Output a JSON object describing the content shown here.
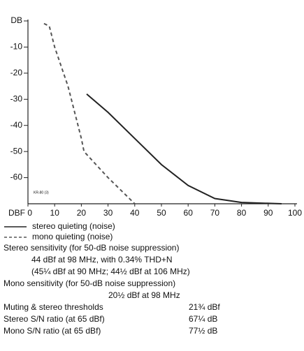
{
  "chart_data": {
    "type": "line",
    "annotation": "KR-80 (3)",
    "series": [
      {
        "name": "stereo quieting (noise)",
        "color": "#222222",
        "dash": false,
        "x": [
          22,
          30,
          40,
          50,
          60,
          70,
          80,
          95
        ],
        "values": [
          -28,
          -35,
          -45,
          -55,
          -63,
          -68,
          -69.5,
          -70
        ]
      },
      {
        "name": "mono quieting (noise)",
        "color": "#555555",
        "dash": true,
        "x": [
          6,
          8,
          10,
          15,
          20,
          21,
          30,
          40
        ],
        "values": [
          -1,
          -2,
          -10,
          -25,
          -45,
          -50,
          -60,
          -70
        ]
      }
    ],
    "xlim": [
      0,
      100
    ],
    "xticks": [
      {
        "value": 0,
        "label": "DBF 0"
      },
      10,
      20,
      30,
      40,
      50,
      60,
      70,
      80,
      90,
      100
    ],
    "ylim": [
      -70,
      0
    ],
    "yticks": [
      {
        "value": 0,
        "label": "DB"
      },
      -10,
      -20,
      -30,
      -40,
      -50,
      -60
    ],
    "grid": false
  },
  "specs": {
    "lines": [
      {
        "text": "Stereo sensitivity (for 50-dB noise suppression)",
        "indent": 0
      },
      {
        "text": "44 dBf at 98 MHz, with 0.34% THD+N",
        "indent": 1
      },
      {
        "text": "(45¼ dBf at 90 MHz; 44½ dBf at 106 MHz)",
        "indent": 1
      },
      {
        "text": "Mono sensitivity (for 50-dB noise suppression)",
        "indent": 0
      },
      {
        "text": "20½ dBf at 98 MHz",
        "indent": 2
      }
    ],
    "rows": [
      [
        "Muting & stereo thresholds",
        "21¾ dBf"
      ],
      [
        "Stereo S/N ratio (at 65 dBf)",
        "67¼ dB"
      ],
      [
        "Mono S/N ratio (at 65 dBf)",
        "77½ dB"
      ]
    ]
  }
}
